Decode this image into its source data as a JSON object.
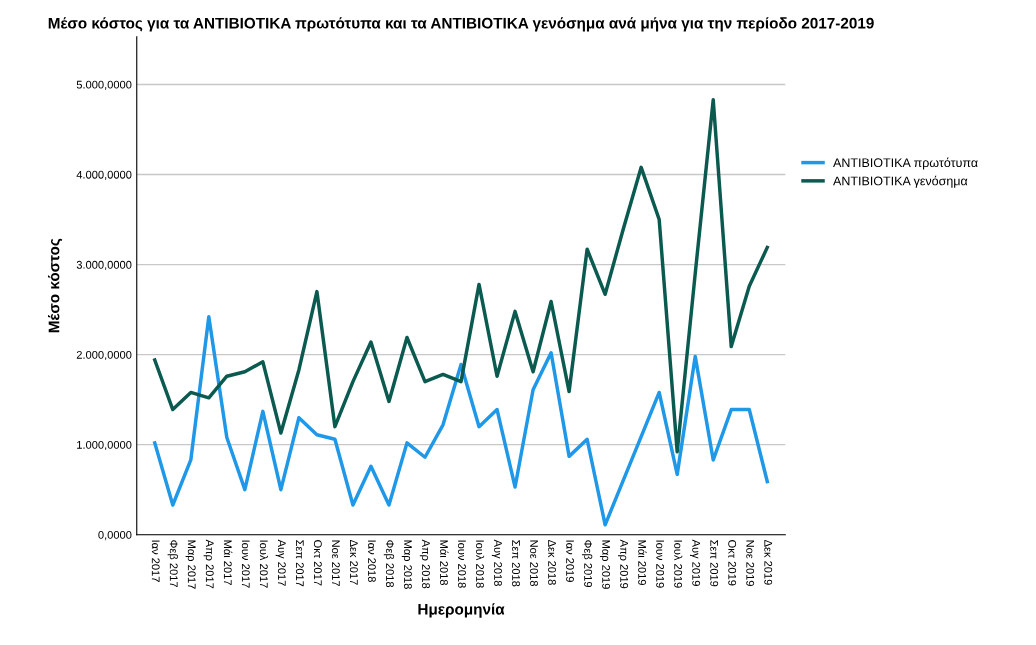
{
  "chart_data": {
    "type": "line",
    "title": "Μέσο κόστος για τα ANTIBIOTIKA πρωτότυπα και τα ANTIBIOTIKA γενόσημα ανά μήνα για την περίοδο 2017-2019",
    "xlabel": "Ημερομηνία",
    "ylabel": "Μέσο κόστος",
    "categories": [
      "Ιαν 2017",
      "Φεβ 2017",
      "Μαρ 2017",
      "Απρ 2017",
      "Μάι 2017",
      "Ιουν 2017",
      "Ιουλ 2017",
      "Αυγ 2017",
      "Σεπ 2017",
      "Οκτ 2017",
      "Νοε 2017",
      "Δεκ 2017",
      "Ιαν 2018",
      "Φεβ 2018",
      "Μαρ 2018",
      "Απρ 2018",
      "Μάι 2018",
      "Ιουν 2018",
      "Ιουλ 2018",
      "Αυγ 2018",
      "Σεπ 2018",
      "Νοε 2018",
      "Δεκ 2018",
      "Ιαν 2019",
      "Φεβ 2019",
      "Μαρ 2019",
      "Απρ 2019",
      "Μάι 2019",
      "Ιουν 2019",
      "Ιουλ 2019",
      "Αυγ 2019",
      "Σεπ 2019",
      "Οκτ 2019",
      "Νοε 2019",
      "Δεκ 2019"
    ],
    "series": [
      {
        "name": "ANTIBIOTIKA πρωτότυπα",
        "color": "#1f98e8",
        "values": [
          1020,
          330,
          830,
          2420,
          1080,
          500,
          1370,
          500,
          1300,
          1110,
          1060,
          330,
          760,
          330,
          1020,
          860,
          1220,
          1890,
          1200,
          1390,
          530,
          1610,
          2020,
          870,
          1060,
          110,
          600,
          1090,
          1580,
          670,
          1980,
          830,
          1390,
          1390,
          590
        ]
      },
      {
        "name": "ANTIBIOTIKA γενόσημα",
        "color": "#0b5a50",
        "values": [
          1940,
          1390,
          1580,
          1520,
          1760,
          1810,
          1920,
          1130,
          1830,
          2700,
          1200,
          1700,
          2140,
          1480,
          2190,
          1700,
          1780,
          1700,
          2780,
          1760,
          2480,
          1810,
          2590,
          1590,
          3170,
          2670,
          3390,
          4080,
          3500,
          920,
          2900,
          4830,
          2090,
          2760,
          3190
        ]
      }
    ],
    "ylim": [
      0,
      5530
    ],
    "yticks": [
      {
        "value": 0,
        "label": "0,0000"
      },
      {
        "value": 1000,
        "label": "1.000,0000"
      },
      {
        "value": 2000,
        "label": "2.000,0000"
      },
      {
        "value": 3000,
        "label": "3.000,0000"
      },
      {
        "value": 4000,
        "label": "4.000,0000"
      },
      {
        "value": 5000,
        "label": "5.000,0000"
      }
    ],
    "grid": "y",
    "legend": "right",
    "line_style": "solid",
    "marker": "none"
  }
}
